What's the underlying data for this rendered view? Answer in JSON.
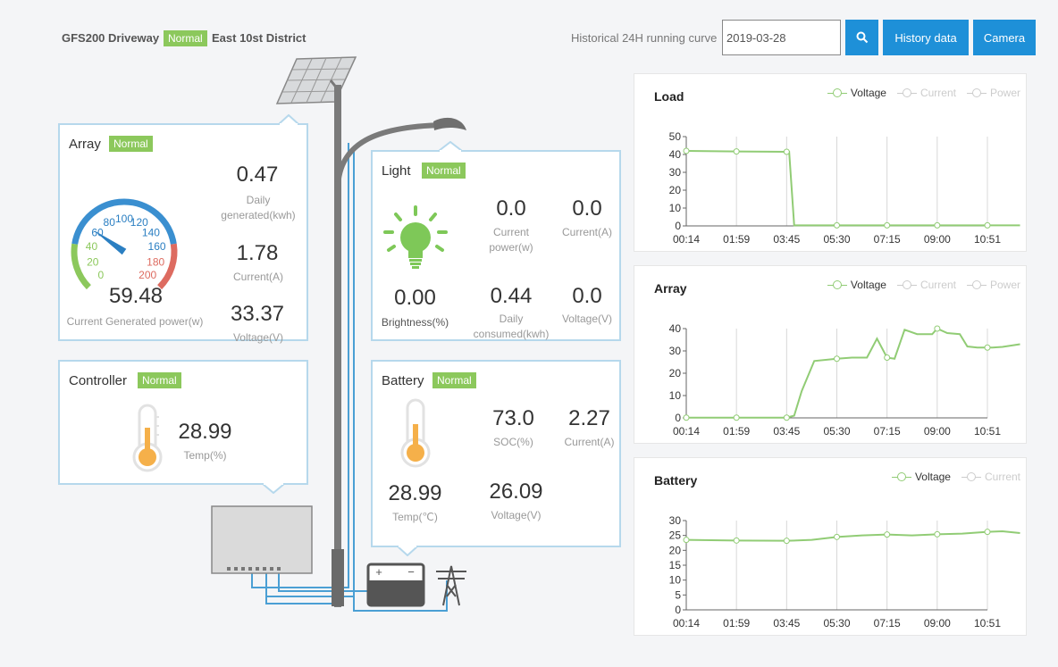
{
  "header": {
    "station": "GFS200 Driveway",
    "status": "Normal",
    "district": "East 10st District",
    "history_label": "Historical 24H running curve",
    "date_value": "2019-03-28",
    "history_button": "History data",
    "camera_button": "Camera",
    "search_icon": "search-icon"
  },
  "array_card": {
    "title": "Array",
    "status": "Normal",
    "gauge_value": "59.48",
    "gauge_label": "Current Generated power(w)",
    "gauge_ticks": [
      "0",
      "20",
      "40",
      "60",
      "80",
      "100",
      "120",
      "140",
      "160",
      "180",
      "200"
    ],
    "daily_generated": "0.47",
    "daily_generated_label": "Daily generated(kwh)",
    "current": "1.78",
    "current_label": "Current(A)",
    "voltage": "33.37",
    "voltage_label": "Voltage(V)"
  },
  "light_card": {
    "title": "Light",
    "status": "Normal",
    "current_power": "0.0",
    "current_power_label": "Current power(w)",
    "current": "0.0",
    "current_label": "Current(A)",
    "brightness": "0.00",
    "brightness_label": "Brightness(%)",
    "daily_consumed": "0.44",
    "daily_consumed_label": "Daily consumed(kwh)",
    "voltage": "0.0",
    "voltage_label": "Voltage(V)"
  },
  "controller_card": {
    "title": "Controller",
    "status": "Normal",
    "temp": "28.99",
    "temp_label": "Temp(%)"
  },
  "battery_card": {
    "title": "Battery",
    "status": "Normal",
    "soc": "73.0",
    "soc_label": "SOC(%)",
    "current": "2.27",
    "current_label": "Current(A)",
    "temp": "28.99",
    "temp_label": "Temp(℃)",
    "voltage": "26.09",
    "voltage_label": "Voltage(V)"
  },
  "diagram": {
    "battery_plus": "+",
    "battery_minus": "−"
  },
  "chart_data": [
    {
      "type": "line",
      "title": "Load",
      "legend": [
        "Voltage",
        "Current",
        "Power"
      ],
      "active_series": "Voltage",
      "x_ticks": [
        "00:14",
        "01:59",
        "03:45",
        "05:30",
        "07:15",
        "09:00",
        "10:51"
      ],
      "ylim": [
        0,
        50
      ],
      "y_ticks": [
        0,
        10,
        20,
        30,
        40,
        50
      ],
      "series": [
        {
          "name": "Voltage",
          "x": [
            0,
            1,
            2,
            2.05,
            2.15,
            3,
            4,
            5,
            6,
            6.65
          ],
          "y": [
            42,
            41.7,
            41.5,
            41.5,
            0.3,
            0.3,
            0.3,
            0.3,
            0.3,
            0.3
          ]
        }
      ],
      "markers": [
        0,
        1,
        2,
        3,
        4,
        5,
        6
      ],
      "color": "#91cc75"
    },
    {
      "type": "line",
      "title": "Array",
      "legend": [
        "Voltage",
        "Current",
        "Power"
      ],
      "active_series": "Voltage",
      "x_ticks": [
        "00:14",
        "01:59",
        "03:45",
        "05:30",
        "07:15",
        "09:00",
        "10:51"
      ],
      "ylim": [
        0,
        40
      ],
      "y_ticks": [
        0,
        10,
        20,
        30,
        40
      ],
      "series": [
        {
          "name": "Voltage",
          "x": [
            0,
            1,
            2,
            2.15,
            2.3,
            2.55,
            3,
            3.3,
            3.6,
            3.8,
            4,
            4.15,
            4.35,
            4.6,
            4.9,
            5,
            5.2,
            5.45,
            5.6,
            5.8,
            6.1,
            6.3,
            6.65
          ],
          "y": [
            0.1,
            0.1,
            0.1,
            1,
            12,
            25.5,
            26.5,
            27,
            27,
            35.5,
            27,
            26.5,
            39.5,
            37.5,
            37.5,
            40,
            38,
            37.5,
            32,
            31.5,
            31.5,
            31.8,
            33
          ]
        }
      ],
      "markers": [
        0,
        1,
        2,
        3,
        4,
        5,
        6
      ],
      "color": "#91cc75"
    },
    {
      "type": "line",
      "title": "Battery",
      "legend": [
        "Voltage",
        "Current"
      ],
      "active_series": "Voltage",
      "x_ticks": [
        "00:14",
        "01:59",
        "03:45",
        "05:30",
        "07:15",
        "09:00",
        "10:51"
      ],
      "ylim": [
        0,
        30
      ],
      "y_ticks": [
        0,
        5,
        10,
        15,
        20,
        25,
        30
      ],
      "series": [
        {
          "name": "Voltage",
          "x": [
            0,
            1,
            2,
            2.5,
            3,
            3.5,
            4,
            4.5,
            5,
            5.5,
            6,
            6.3,
            6.65
          ],
          "y": [
            23.5,
            23.3,
            23.2,
            23.5,
            24.5,
            25,
            25.3,
            25,
            25.4,
            25.6,
            26.2,
            26.4,
            25.8
          ]
        }
      ],
      "markers": [
        0,
        1,
        2,
        3,
        4,
        5,
        6
      ],
      "color": "#91cc75"
    }
  ]
}
